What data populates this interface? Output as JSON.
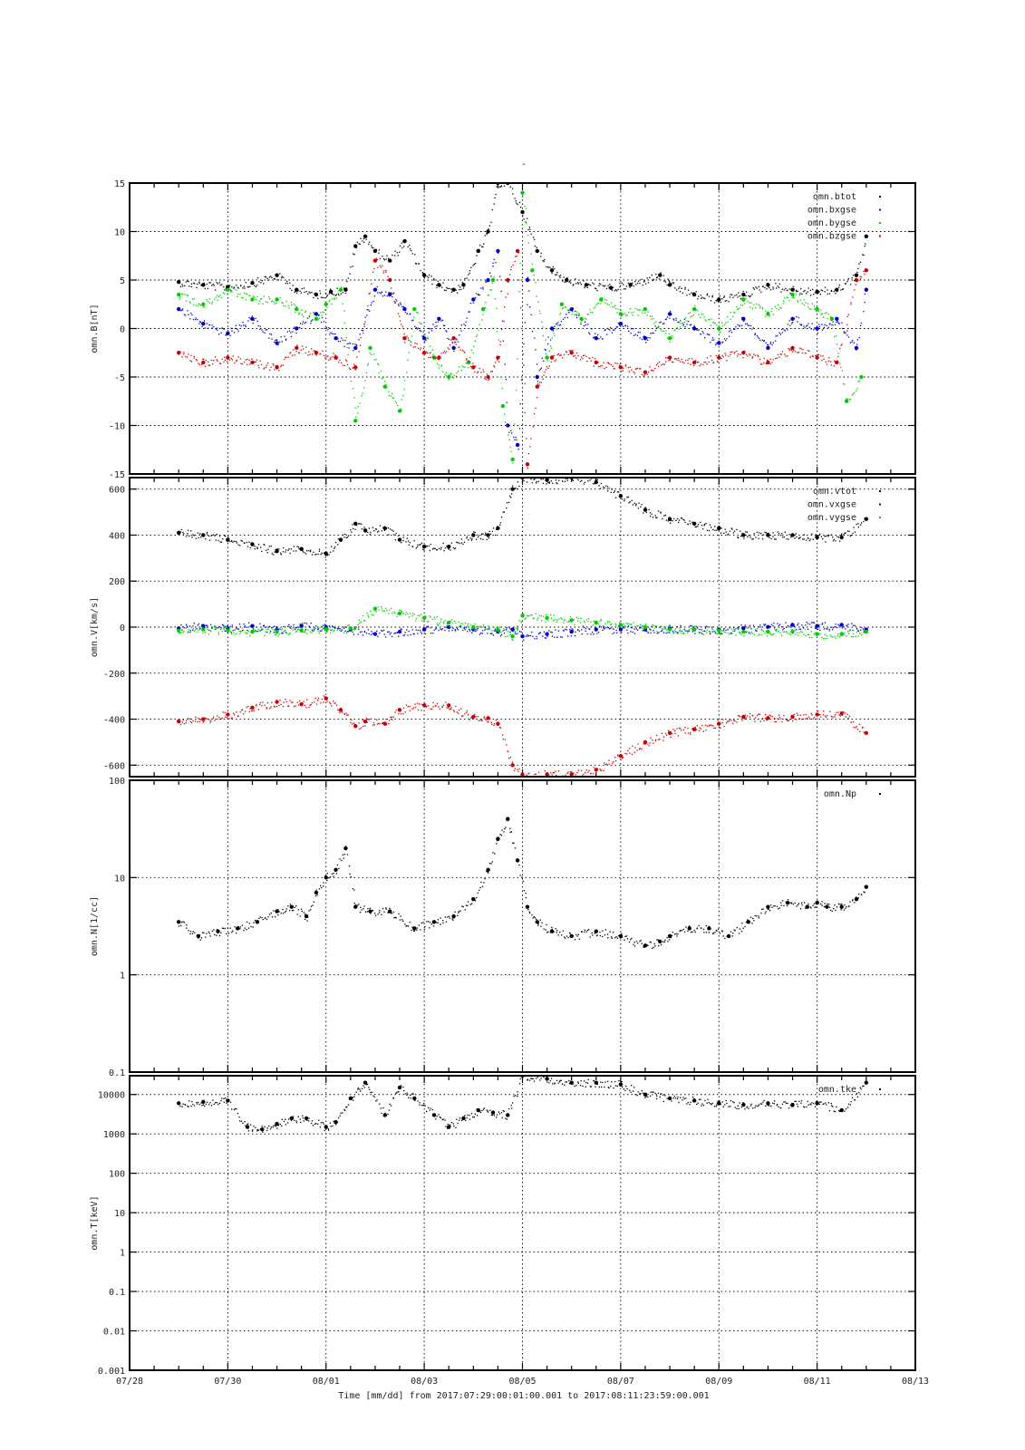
{
  "figure": {
    "title": "-",
    "xlabel": "Time [mm/dd]  from 2017:07:29:00:01:00.001  to  2017:08:11:23:59:00.001",
    "x_tick_labels": [
      "07/28",
      "07/30",
      "08/01",
      "08/03",
      "08/05",
      "08/07",
      "08/09",
      "08/11",
      "08/13"
    ]
  },
  "chart_data": [
    {
      "type": "scatter",
      "ylabel": "omn.B[nT]",
      "x_unit": "days since 07/28 00:00",
      "xlim": [
        0,
        16
      ],
      "ylim": [
        -15,
        15
      ],
      "y_ticks": [
        -15,
        -10,
        -5,
        0,
        5,
        10,
        15
      ],
      "y_tick_labels": [
        "-15",
        "-10",
        "-5",
        "0",
        "5",
        "10",
        "15"
      ],
      "legend_position": "top-right",
      "series": [
        {
          "name": "omn.btot",
          "color": "#000000",
          "x": [
            1.0,
            1.5,
            2.0,
            2.5,
            3.0,
            3.4,
            3.8,
            4.1,
            4.4,
            4.6,
            4.8,
            5.0,
            5.3,
            5.6,
            6.0,
            6.3,
            6.6,
            6.8,
            7.1,
            7.3,
            7.5,
            7.7,
            8.0,
            8.3,
            8.6,
            8.9,
            9.3,
            9.8,
            10.2,
            10.8,
            11.0,
            11.5,
            12.0,
            12.5,
            13.0,
            13.5,
            14.0,
            14.4,
            14.8,
            15.0
          ],
          "y": [
            4.8,
            4.5,
            4.3,
            4.7,
            5.5,
            4.0,
            3.5,
            3.8,
            4.0,
            8.5,
            9.5,
            8.0,
            7.0,
            9.0,
            5.5,
            4.5,
            4.0,
            4.5,
            8.0,
            10.0,
            15.0,
            16.0,
            12.0,
            8.0,
            6.0,
            5.0,
            4.5,
            4.2,
            4.5,
            5.5,
            4.5,
            3.5,
            3.0,
            3.5,
            4.5,
            4.0,
            3.8,
            4.0,
            5.5,
            9.5
          ]
        },
        {
          "name": "omn.bxgse",
          "color": "#0000cc",
          "x": [
            1.0,
            1.5,
            2.0,
            2.5,
            3.0,
            3.4,
            3.8,
            4.2,
            4.6,
            5.0,
            5.3,
            5.6,
            6.0,
            6.3,
            6.6,
            7.0,
            7.3,
            7.5,
            7.7,
            7.9,
            8.1,
            8.3,
            8.6,
            9.0,
            9.5,
            10.0,
            10.5,
            11.0,
            11.5,
            12.0,
            12.5,
            13.0,
            13.5,
            14.0,
            14.4,
            14.8,
            15.0
          ],
          "y": [
            2.0,
            0.5,
            -0.5,
            1.0,
            -1.5,
            0.0,
            1.5,
            -1.0,
            -2.0,
            4.0,
            3.5,
            2.0,
            -1.0,
            1.0,
            -2.0,
            3.0,
            5.0,
            8.0,
            -10.0,
            -12.0,
            5.0,
            -5.0,
            0.0,
            2.0,
            -1.0,
            0.5,
            -1.0,
            1.5,
            0.0,
            -1.5,
            1.0,
            -2.0,
            1.0,
            0.0,
            1.0,
            -2.0,
            4.0
          ]
        },
        {
          "name": "omn.bygse",
          "color": "#00cc00",
          "x": [
            1.0,
            1.5,
            2.0,
            2.5,
            3.0,
            3.4,
            3.8,
            4.0,
            4.3,
            4.6,
            4.9,
            5.2,
            5.5,
            5.8,
            6.2,
            6.5,
            6.9,
            7.2,
            7.4,
            7.6,
            7.8,
            8.0,
            8.2,
            8.5,
            8.8,
            9.2,
            9.6,
            10.0,
            10.5,
            11.0,
            11.5,
            12.0,
            12.5,
            13.0,
            13.5,
            14.0,
            14.3,
            14.6,
            14.9
          ],
          "y": [
            3.5,
            2.5,
            4.0,
            3.0,
            3.0,
            2.0,
            1.0,
            2.5,
            4.0,
            -9.5,
            -2.0,
            -6.0,
            -8.5,
            2.0,
            -3.0,
            -5.0,
            -3.5,
            2.0,
            5.0,
            -8.0,
            -13.5,
            14.0,
            6.0,
            -3.0,
            2.5,
            1.0,
            3.0,
            1.5,
            2.0,
            -1.0,
            2.0,
            0.0,
            3.0,
            1.5,
            3.5,
            2.0,
            1.0,
            -7.5,
            -5.0
          ]
        },
        {
          "name": "omn.bzgse",
          "color": "#cc0000",
          "x": [
            1.0,
            1.5,
            2.0,
            2.5,
            3.0,
            3.4,
            3.8,
            4.2,
            4.6,
            5.0,
            5.3,
            5.6,
            6.0,
            6.3,
            6.6,
            7.0,
            7.3,
            7.5,
            7.7,
            7.9,
            8.1,
            8.3,
            8.6,
            9.0,
            9.5,
            10.0,
            10.5,
            11.0,
            11.5,
            12.0,
            12.5,
            13.0,
            13.5,
            14.0,
            14.4,
            14.8,
            15.0
          ],
          "y": [
            -2.5,
            -3.5,
            -3.0,
            -3.5,
            -4.0,
            -2.0,
            -2.5,
            -3.0,
            -4.0,
            7.0,
            5.0,
            -1.0,
            -2.5,
            -3.0,
            -1.0,
            -4.0,
            -5.0,
            -3.0,
            5.0,
            8.0,
            -14.0,
            -6.0,
            -3.0,
            -2.5,
            -3.5,
            -4.0,
            -4.5,
            -3.0,
            -3.5,
            -3.0,
            -2.5,
            -3.5,
            -2.0,
            -3.0,
            -3.5,
            5.0,
            6.0
          ]
        }
      ]
    },
    {
      "type": "scatter",
      "ylabel": "omn.V[km/s]",
      "x_unit": "days since 07/28 00:00",
      "xlim": [
        0,
        16
      ],
      "ylim": [
        -650,
        650
      ],
      "y_ticks": [
        -600,
        -400,
        -200,
        0,
        200,
        400,
        600
      ],
      "y_tick_labels": [
        "-600",
        "-400",
        "-200",
        "0",
        "200",
        "400",
        "600"
      ],
      "legend_position": "top-right",
      "series": [
        {
          "name": "omn.vtot",
          "color": "#000000",
          "x": [
            1.0,
            1.5,
            2.0,
            2.5,
            3.0,
            3.5,
            4.0,
            4.3,
            4.6,
            4.8,
            5.2,
            5.5,
            6.0,
            6.5,
            7.0,
            7.3,
            7.5,
            7.8,
            8.0,
            8.5,
            9.0,
            9.5,
            10.0,
            10.5,
            11.0,
            11.5,
            12.0,
            12.5,
            13.0,
            13.5,
            14.0,
            14.5,
            15.0
          ],
          "y": [
            410,
            400,
            380,
            360,
            330,
            340,
            320,
            380,
            450,
            420,
            430,
            380,
            350,
            350,
            400,
            400,
            430,
            600,
            650,
            640,
            650,
            630,
            570,
            510,
            470,
            450,
            430,
            400,
            400,
            400,
            390,
            390,
            470
          ]
        },
        {
          "name": "omn.vxgse",
          "color": "#0000cc",
          "x": [
            1.0,
            1.5,
            2.0,
            2.5,
            3.0,
            3.5,
            4.0,
            4.5,
            5.0,
            5.5,
            6.0,
            6.5,
            7.0,
            7.5,
            7.8,
            8.0,
            8.5,
            9.0,
            9.5,
            10.0,
            10.5,
            11.0,
            11.5,
            12.0,
            12.5,
            13.0,
            13.5,
            14.0,
            14.5,
            15.0
          ],
          "y": [
            -5,
            5,
            -5,
            5,
            -10,
            5,
            0,
            -10,
            -30,
            -20,
            -10,
            0,
            -10,
            -20,
            -10,
            -40,
            -30,
            -20,
            -10,
            -10,
            -10,
            -5,
            -10,
            -10,
            -5,
            0,
            10,
            5,
            10,
            -10
          ]
        },
        {
          "name": "omn.vygse",
          "color": "#00cc00",
          "x": [
            1.0,
            1.5,
            2.0,
            2.5,
            3.0,
            3.5,
            4.0,
            4.5,
            5.0,
            5.5,
            6.0,
            6.5,
            7.0,
            7.5,
            7.8,
            8.0,
            8.5,
            9.0,
            9.5,
            10.0,
            10.5,
            11.0,
            11.5,
            12.0,
            12.5,
            13.0,
            13.5,
            14.0,
            14.5,
            15.0
          ],
          "y": [
            -15,
            -10,
            -15,
            -20,
            -20,
            -15,
            -10,
            -5,
            80,
            60,
            40,
            20,
            0,
            -10,
            -40,
            50,
            40,
            30,
            20,
            10,
            0,
            -10,
            -10,
            -15,
            -20,
            -20,
            -20,
            -30,
            -30,
            -20
          ]
        },
        {
          "name": "",
          "color": "#cc0000",
          "x": [
            1.0,
            1.5,
            2.0,
            2.5,
            3.0,
            3.5,
            4.0,
            4.3,
            4.6,
            4.8,
            5.2,
            5.5,
            6.0,
            6.5,
            7.0,
            7.3,
            7.5,
            7.8,
            8.0,
            8.5,
            9.0,
            9.5,
            10.0,
            10.5,
            11.0,
            11.5,
            12.0,
            12.5,
            13.0,
            13.5,
            14.0,
            14.5,
            15.0
          ],
          "y": [
            -410,
            -400,
            -380,
            -350,
            -325,
            -335,
            -310,
            -360,
            -430,
            -410,
            -420,
            -360,
            -340,
            -340,
            -390,
            -395,
            -420,
            -600,
            -640,
            -640,
            -640,
            -620,
            -560,
            -500,
            -460,
            -445,
            -420,
            -390,
            -395,
            -390,
            -380,
            -375,
            -460
          ]
        }
      ]
    },
    {
      "type": "scatter",
      "ylabel": "omn.N[1/cc]",
      "yscale": "log",
      "x_unit": "days since 07/28 00:00",
      "xlim": [
        0,
        16
      ],
      "ylim": [
        0.1,
        100
      ],
      "y_ticks": [
        0.1,
        1,
        10,
        100
      ],
      "y_tick_labels": [
        "0.1",
        "1",
        "10",
        "100"
      ],
      "legend_position": "top-right",
      "series": [
        {
          "name": "omn.Np",
          "color": "#000000",
          "x": [
            1.0,
            1.4,
            1.8,
            2.2,
            2.6,
            3.0,
            3.3,
            3.6,
            3.8,
            4.0,
            4.2,
            4.4,
            4.6,
            4.9,
            5.3,
            5.8,
            6.2,
            6.6,
            7.0,
            7.3,
            7.5,
            7.7,
            7.9,
            8.1,
            8.3,
            8.6,
            9.0,
            9.5,
            10.0,
            10.5,
            10.8,
            11.0,
            11.4,
            11.8,
            12.2,
            12.6,
            13.0,
            13.4,
            13.8,
            14.0,
            14.2,
            14.5,
            14.8,
            15.0
          ],
          "y": [
            3.5,
            2.5,
            2.8,
            3.0,
            3.5,
            4.5,
            5.0,
            4.0,
            7.0,
            10.0,
            12.0,
            20.0,
            5.0,
            4.5,
            4.5,
            3.0,
            3.5,
            4.0,
            6.0,
            12.0,
            25.0,
            40.0,
            15.0,
            5.0,
            3.5,
            2.8,
            2.5,
            2.8,
            2.5,
            2.0,
            2.2,
            2.5,
            3.0,
            3.0,
            2.5,
            3.5,
            5.0,
            5.5,
            5.0,
            5.5,
            5.0,
            5.0,
            6.0,
            8.0
          ]
        }
      ]
    },
    {
      "type": "scatter",
      "ylabel": "omn.T[keV]",
      "yscale": "log",
      "x_unit": "days since 07/28 00:00",
      "xlim": [
        0,
        16
      ],
      "ylim": [
        0.001,
        30000
      ],
      "y_ticks": [
        0.001,
        0.01,
        0.1,
        1,
        10,
        100,
        1000,
        10000
      ],
      "y_tick_labels": [
        "0.001",
        "0.01",
        "0.1",
        "1",
        "10",
        "100",
        "1000",
        "10000"
      ],
      "legend_position": "top-right",
      "series": [
        {
          "name": "omn.tke",
          "color": "#000000",
          "x": [
            1.0,
            1.5,
            2.0,
            2.4,
            2.7,
            3.0,
            3.3,
            3.6,
            4.0,
            4.2,
            4.5,
            4.8,
            5.2,
            5.5,
            5.8,
            6.2,
            6.5,
            6.8,
            7.1,
            7.4,
            7.7,
            8.0,
            8.5,
            9.0,
            9.5,
            10.0,
            10.5,
            11.0,
            11.5,
            12.0,
            12.5,
            13.0,
            13.5,
            14.0,
            14.5,
            15.0
          ],
          "y": [
            6000,
            6500,
            7000,
            1500,
            1300,
            1800,
            2500,
            2500,
            1500,
            2000,
            8000,
            20000,
            3000,
            15000,
            8000,
            3000,
            1500,
            2500,
            4000,
            3500,
            3000,
            30000,
            25000,
            20000,
            20000,
            18000,
            10000,
            8000,
            7000,
            6000,
            5500,
            6000,
            5500,
            6000,
            4000,
            20000
          ]
        }
      ]
    }
  ]
}
